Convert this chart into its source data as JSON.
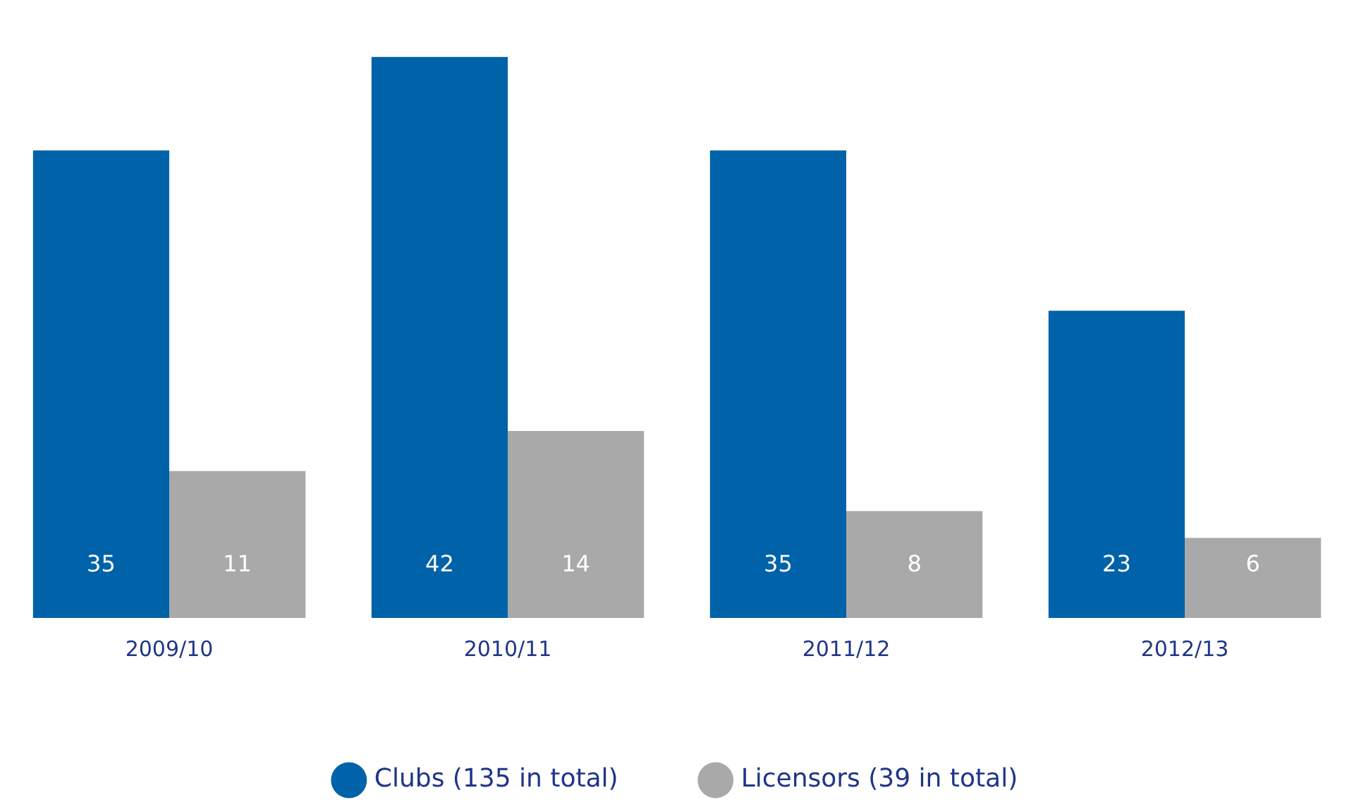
{
  "chart_data": {
    "type": "bar",
    "categories": [
      "2009/10",
      "2010/11",
      "2011/12",
      "2012/13"
    ],
    "series": [
      {
        "name": "Clubs (135 in total)",
        "color": "#0062a8",
        "values": [
          35,
          42,
          35,
          23
        ]
      },
      {
        "name": "Licensors (39 in total)",
        "color": "#a9a9a9",
        "values": [
          11,
          14,
          8,
          6
        ]
      }
    ],
    "data_labels": true,
    "legend": "bottom",
    "grid": false
  }
}
